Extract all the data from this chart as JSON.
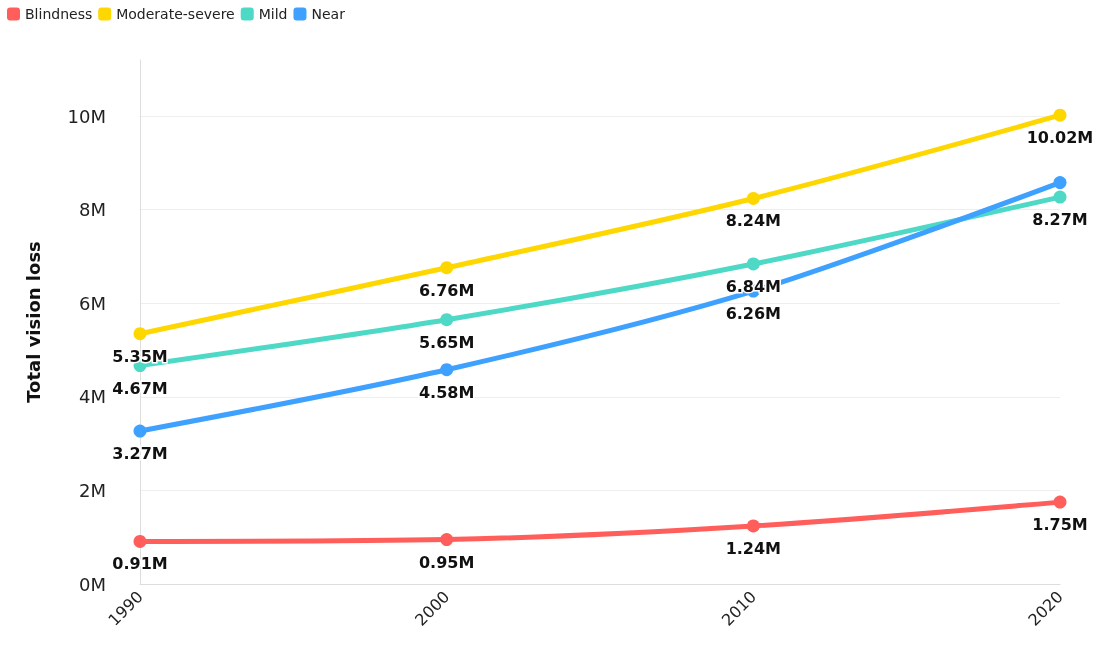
{
  "chart_data": {
    "type": "line",
    "ylabel": "Total vision loss",
    "categories": [
      "1990",
      "2000",
      "2010",
      "2020"
    ],
    "series": [
      {
        "name": "Blindness",
        "color": "#ff5e5b",
        "values": [
          0.91,
          0.95,
          1.24,
          1.75
        ],
        "value_labels": [
          "0.91M",
          "0.95M",
          "1.24M",
          "1.75M"
        ]
      },
      {
        "name": "Moderate-severe",
        "color": "#ffd700",
        "values": [
          5.35,
          6.76,
          8.24,
          10.02
        ],
        "value_labels": [
          "5.35M",
          "6.76M",
          "8.24M",
          "10.02M"
        ]
      },
      {
        "name": "Mild",
        "color": "#4dd9c5",
        "values": [
          4.67,
          5.65,
          6.84,
          8.27
        ],
        "value_labels": [
          "4.67M",
          "5.65M",
          "6.84M",
          "8.27M"
        ]
      },
      {
        "name": "Near",
        "color": "#3ea1ff",
        "values": [
          3.27,
          4.58,
          6.26,
          8.58
        ],
        "value_labels": [
          "3.27M",
          "4.58M",
          "6.26M",
          null
        ]
      }
    ],
    "ylim": [
      0,
      11.2
    ],
    "yticks": [
      {
        "value": 0,
        "label": "0M"
      },
      {
        "value": 2,
        "label": "2M"
      },
      {
        "value": 4,
        "label": "4M"
      },
      {
        "value": 6,
        "label": "6M"
      },
      {
        "value": 8,
        "label": "8M"
      },
      {
        "value": 10,
        "label": "10M"
      }
    ],
    "grid": "y",
    "legend": "top left",
    "marker": "circle",
    "line_style": "solid"
  }
}
